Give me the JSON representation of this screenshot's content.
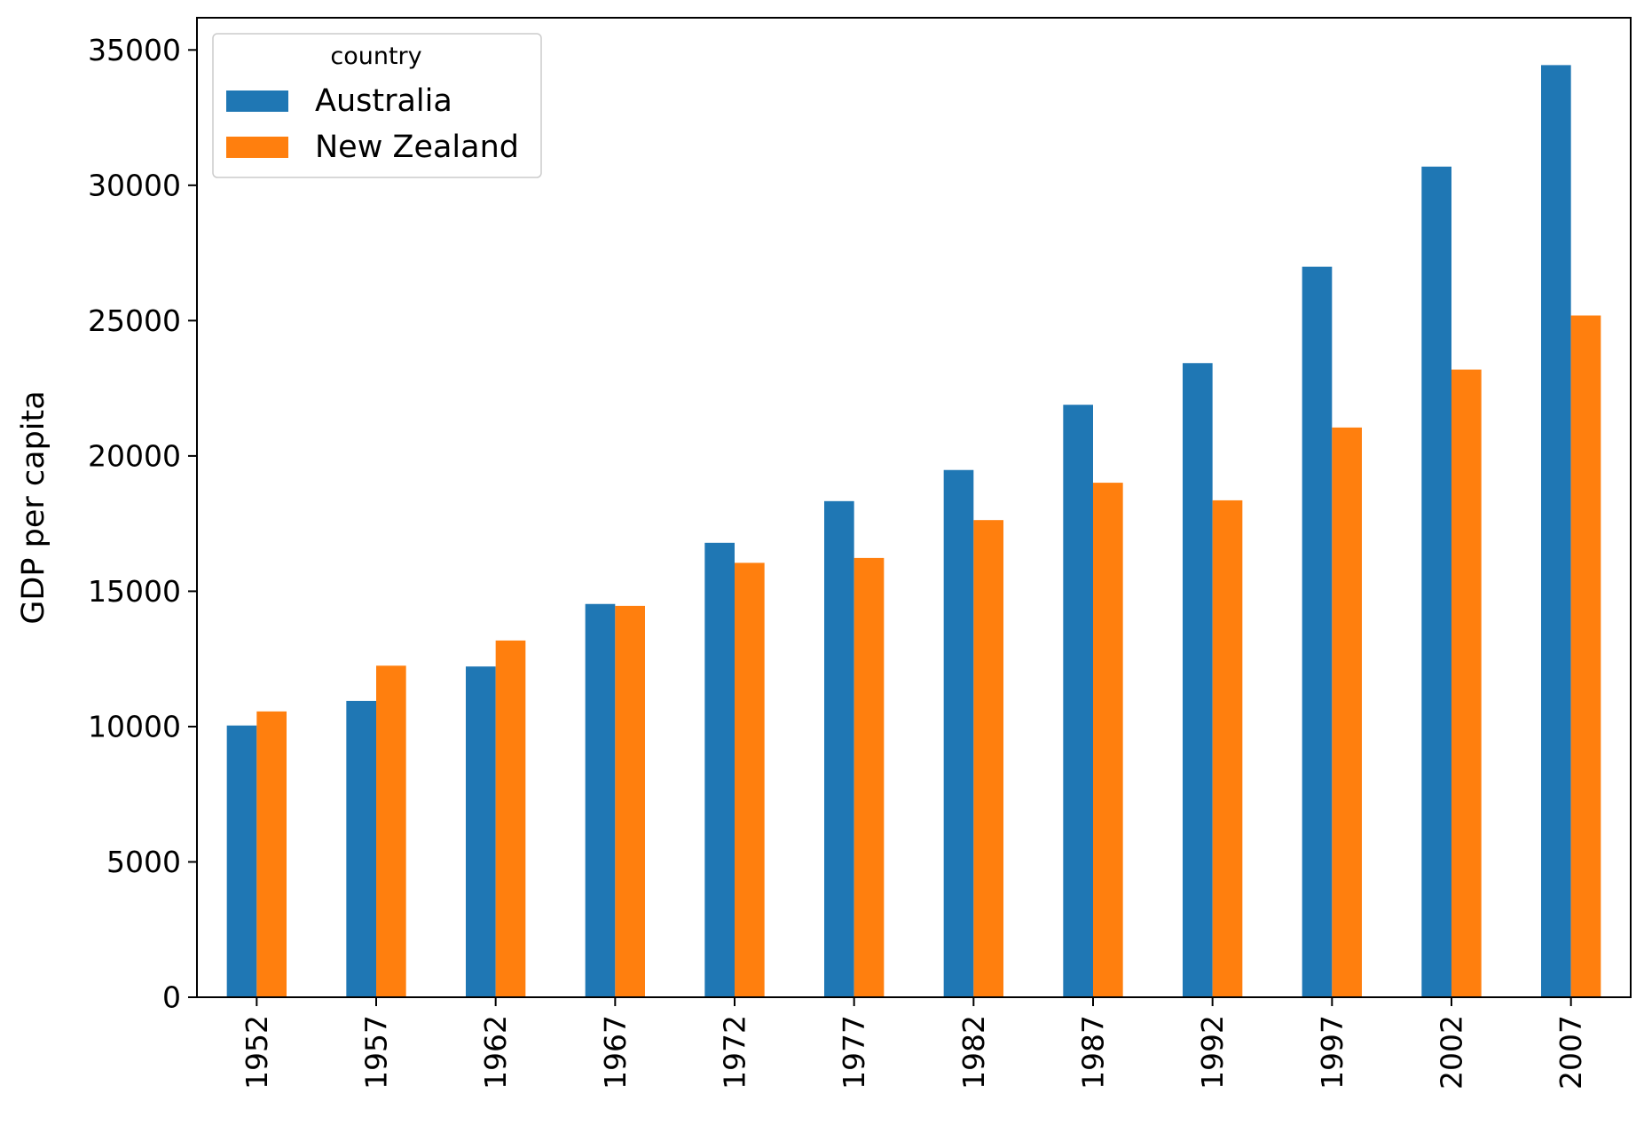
{
  "chart_data": {
    "type": "bar",
    "title": "",
    "xlabel": "",
    "ylabel": "GDP per capita",
    "categories": [
      "1952",
      "1957",
      "1962",
      "1967",
      "1972",
      "1977",
      "1982",
      "1987",
      "1992",
      "1997",
      "2002",
      "2007"
    ],
    "series": [
      {
        "name": "Australia",
        "color": "#1f77b4",
        "values": [
          10040,
          10950,
          12220,
          14530,
          16790,
          18330,
          19480,
          21890,
          23430,
          26990,
          30690,
          34440
        ]
      },
      {
        "name": "New Zealand",
        "color": "#ff7f0e",
        "values": [
          10560,
          12250,
          13180,
          14460,
          16050,
          16230,
          17630,
          19010,
          18360,
          21050,
          23190,
          25190
        ]
      }
    ],
    "ylim": [
      0,
      36190
    ],
    "yticks": [
      0,
      5000,
      10000,
      15000,
      20000,
      25000,
      30000,
      35000
    ],
    "grid": false,
    "legend": {
      "title": "country",
      "position": "top-left"
    }
  }
}
